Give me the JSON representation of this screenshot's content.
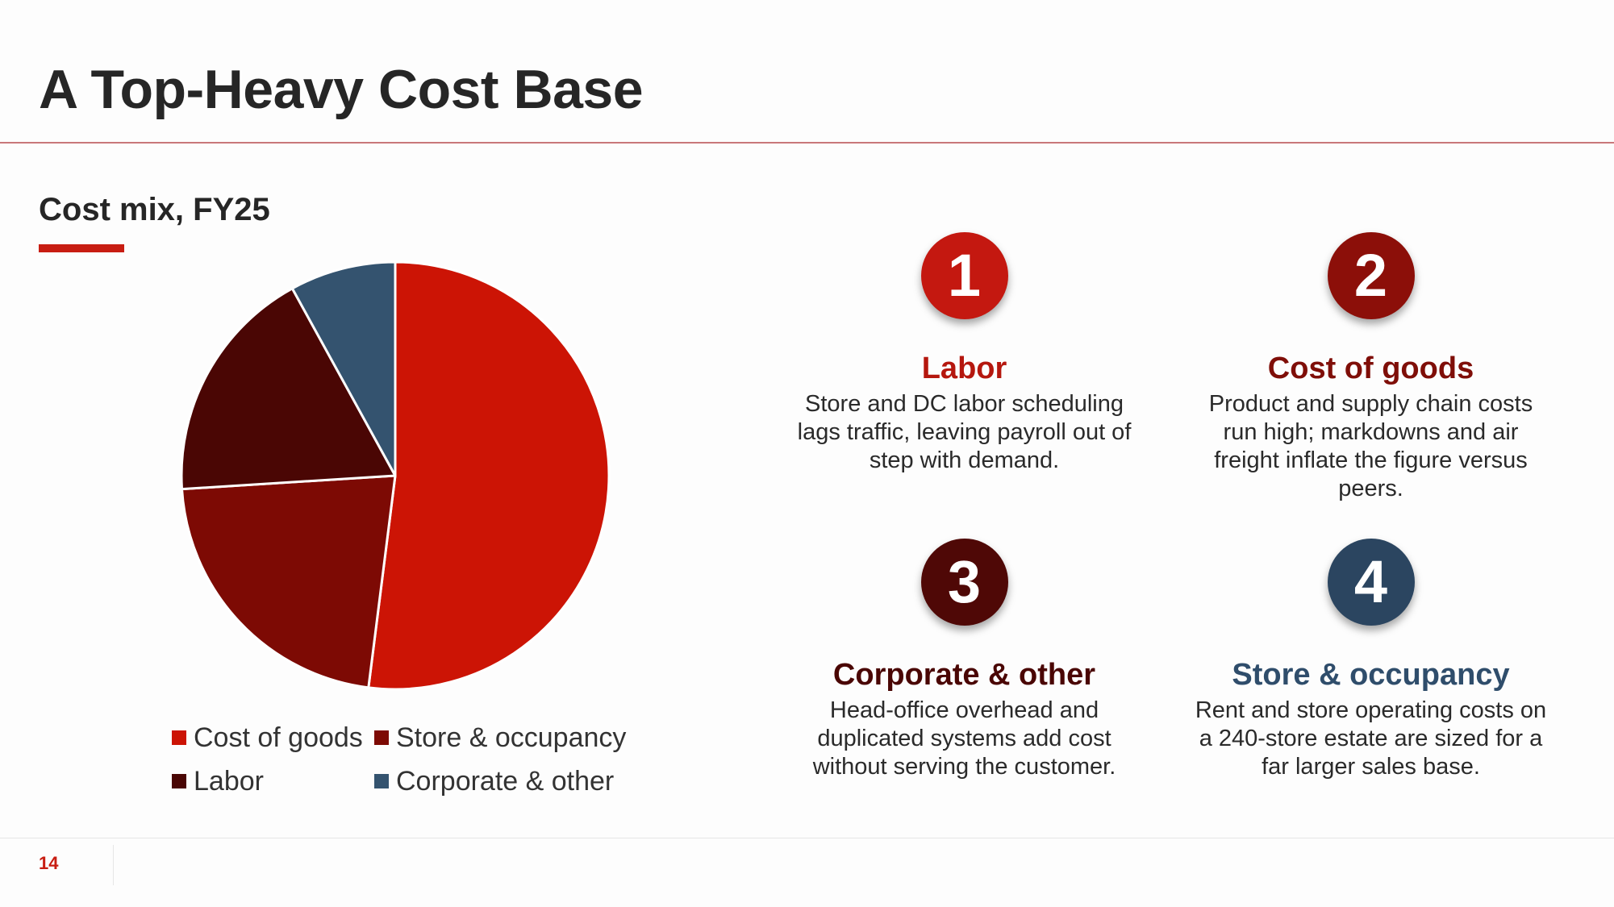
{
  "slide": {
    "title": "A Top-Heavy Cost Base",
    "page_number": "14"
  },
  "colors": {
    "accent": "#c81d12",
    "cost_of_goods": "#cc1405",
    "store_occupancy": "#7d0a04",
    "labor": "#4a0604",
    "corporate_other": "#34536f"
  },
  "chart_data": {
    "type": "pie",
    "title": "Cost mix, FY25",
    "start": "12 o'clock, clockwise",
    "slices": [
      {
        "label": "Cost of goods",
        "value": 52,
        "color": "#cc1405"
      },
      {
        "label": "Store & occupancy",
        "value": 22,
        "color": "#7d0a04"
      },
      {
        "label": "Labor",
        "value": 18,
        "color": "#4a0604"
      },
      {
        "label": "Corporate & other",
        "value": 8,
        "color": "#34536f"
      }
    ],
    "legend": {
      "placement": "bottom",
      "entries": [
        "Cost of goods",
        "Store & occupancy",
        "Labor",
        "Corporate & other"
      ]
    }
  },
  "points": [
    {
      "number": "1",
      "title": "Labor",
      "badge_color": "#c41810",
      "title_color": "#b5170e",
      "description": "Store and DC labor scheduling lags traffic, leaving payroll out of step with demand."
    },
    {
      "number": "2",
      "title": "Cost of goods",
      "badge_color": "#8c0f09",
      "title_color": "#7f0e08",
      "description": "Product and supply chain costs run high; markdowns and air freight inflate the figure versus peers."
    },
    {
      "number": "3",
      "title": "Corporate & other",
      "badge_color": "#4f0806",
      "title_color": "#4a0604",
      "description": "Head-office overhead and duplicated systems add cost without serving the customer."
    },
    {
      "number": "4",
      "title": "Store & occupancy",
      "badge_color": "#2b4560",
      "title_color": "#2f4d6b",
      "description": "Rent and store operating costs on a 240-store estate are sized for a far larger sales base."
    }
  ]
}
